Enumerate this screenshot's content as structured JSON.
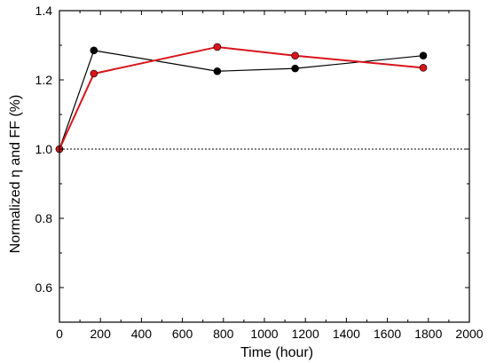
{
  "chart_data": {
    "type": "line",
    "title": "",
    "xlabel": "Time (hour)",
    "ylabel": "Normalized η and FF (%)",
    "xlim": [
      0,
      2000
    ],
    "ylim": [
      0.5,
      1.4
    ],
    "xticks": [
      "0",
      "200",
      "400",
      "600",
      "800",
      "1000",
      "1200",
      "1400",
      "1600",
      "1800",
      "2000"
    ],
    "yticks": [
      "0.6",
      "0.8",
      "1.0",
      "1.2",
      "1.4"
    ],
    "xtick_values": [
      0,
      200,
      400,
      600,
      800,
      1000,
      1200,
      1400,
      1600,
      1800,
      2000
    ],
    "ytick_values": [
      0.6,
      0.8,
      1.0,
      1.2,
      1.4
    ],
    "reference_line": {
      "y": 1.0,
      "style": "dotted",
      "color": "#000000"
    },
    "series": [
      {
        "color": "#000000",
        "x": [
          0,
          168,
          770,
          1150,
          1775
        ],
        "values": [
          1.0,
          1.285,
          1.225,
          1.233,
          1.27
        ]
      },
      {
        "color": "#d9141a",
        "x": [
          0,
          168,
          770,
          1150,
          1775
        ],
        "values": [
          1.0,
          1.218,
          1.295,
          1.27,
          1.235
        ]
      }
    ]
  }
}
